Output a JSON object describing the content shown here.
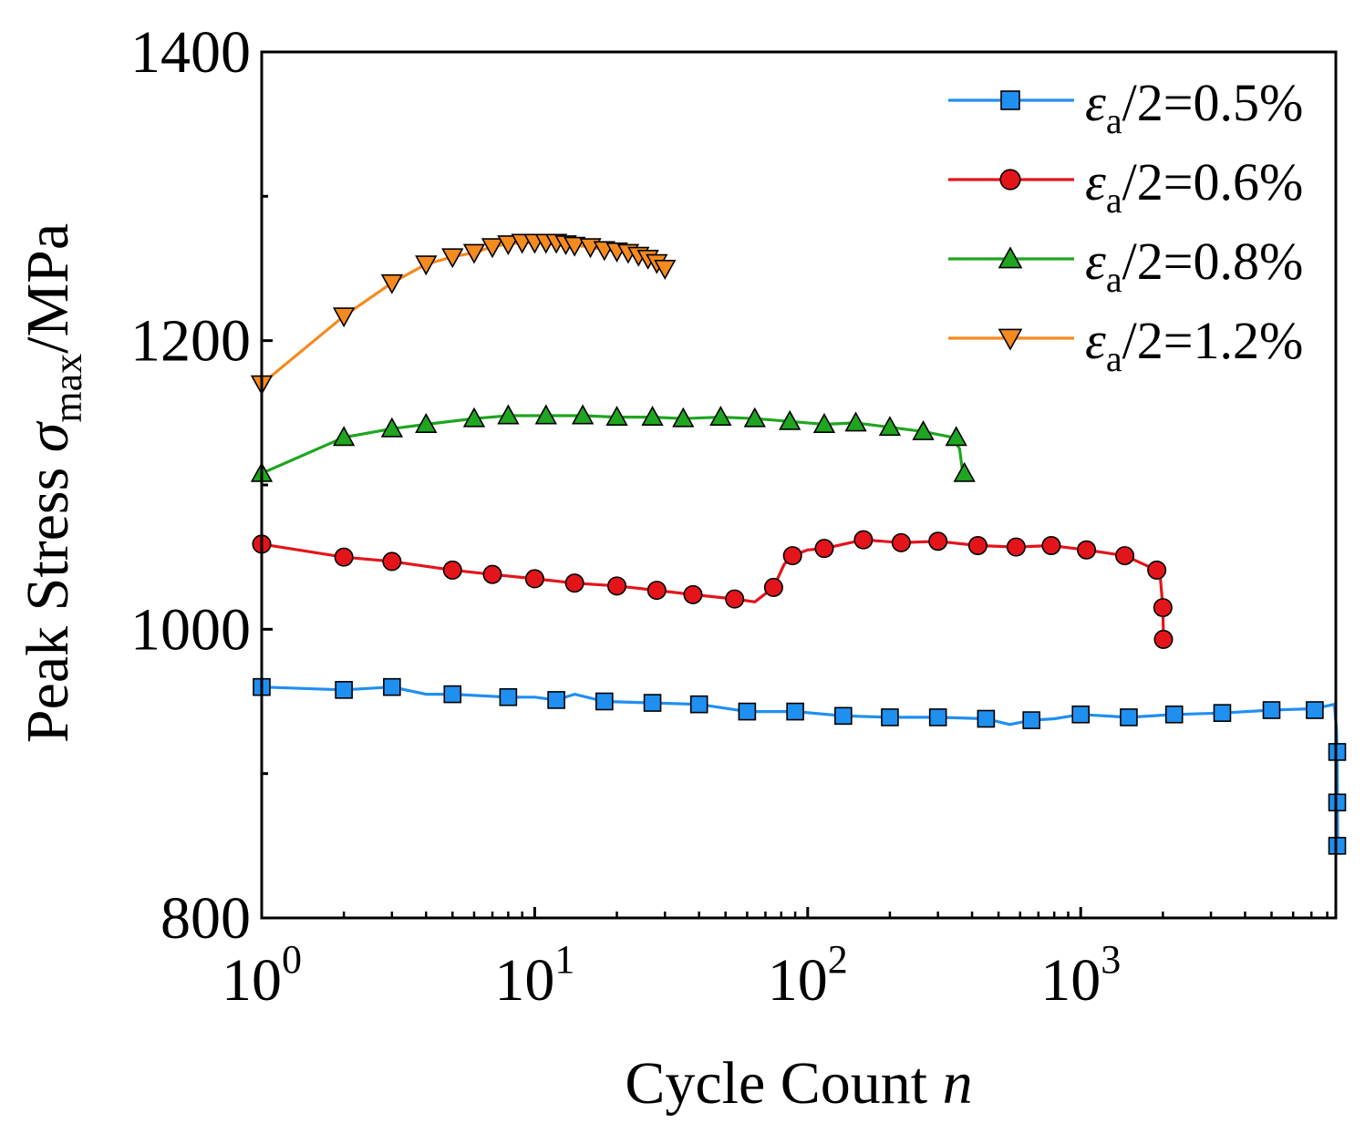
{
  "chart_data": {
    "type": "line",
    "xscale": "log",
    "xlim": [
      1,
      8600
    ],
    "ylim": [
      800,
      1400
    ],
    "xlabel_text": "Cycle Count ",
    "xlabel_var": "n",
    "ylabel_prefix": "Peak Stress ",
    "ylabel_symbol": "σ",
    "ylabel_sub": "max",
    "ylabel_suffix": "/MPa",
    "yticks": [
      800,
      1000,
      1200,
      1400
    ],
    "yticks_minor": [
      900,
      1100,
      1300
    ],
    "xticks": [
      {
        "value": 1,
        "base": "10",
        "exp": "0"
      },
      {
        "value": 10,
        "base": "10",
        "exp": "1"
      },
      {
        "value": 100,
        "base": "10",
        "exp": "2"
      },
      {
        "value": 1000,
        "base": "10",
        "exp": "3"
      }
    ],
    "legend_position": "top-right",
    "series": [
      {
        "name": "εa/2=0.5%",
        "label_symbol": "ε",
        "label_sub": "a",
        "label_rest": "/2=0.5%",
        "color": "#1f8ff0",
        "marker": "square",
        "line": [
          [
            1,
            960
          ],
          [
            2,
            958
          ],
          [
            3,
            960
          ],
          [
            4,
            955
          ],
          [
            5,
            955
          ],
          [
            8,
            953
          ],
          [
            10,
            953
          ],
          [
            12,
            951
          ],
          [
            14,
            955
          ],
          [
            18,
            950
          ],
          [
            27,
            949
          ],
          [
            40,
            948
          ],
          [
            60,
            943
          ],
          [
            90,
            943
          ],
          [
            135,
            940
          ],
          [
            200,
            939
          ],
          [
            300,
            939
          ],
          [
            450,
            938
          ],
          [
            550,
            934
          ],
          [
            660,
            937
          ],
          [
            800,
            938
          ],
          [
            1000,
            941
          ],
          [
            1500,
            939
          ],
          [
            2200,
            941
          ],
          [
            3300,
            942
          ],
          [
            5000,
            944
          ],
          [
            7200,
            945
          ],
          [
            8000,
            947
          ],
          [
            8500,
            948
          ],
          [
            8650,
            930
          ],
          [
            8700,
            910
          ],
          [
            8720,
            880
          ],
          [
            8730,
            850
          ]
        ],
        "points": [
          [
            1,
            960
          ],
          [
            2,
            958
          ],
          [
            3,
            960
          ],
          [
            5,
            955
          ],
          [
            8,
            953
          ],
          [
            12,
            951
          ],
          [
            18,
            950
          ],
          [
            27,
            949
          ],
          [
            40,
            948
          ],
          [
            60,
            943
          ],
          [
            90,
            943
          ],
          [
            135,
            940
          ],
          [
            200,
            939
          ],
          [
            300,
            939
          ],
          [
            450,
            938
          ],
          [
            660,
            937
          ],
          [
            1000,
            941
          ],
          [
            1500,
            939
          ],
          [
            2200,
            941
          ],
          [
            3300,
            942
          ],
          [
            5000,
            944
          ],
          [
            7200,
            944
          ],
          [
            8700,
            915
          ],
          [
            8700,
            880
          ],
          [
            8700,
            850
          ]
        ]
      },
      {
        "name": "εa/2=0.6%",
        "label_symbol": "ε",
        "label_sub": "a",
        "label_rest": "/2=0.6%",
        "color": "#e4141b",
        "marker": "circle",
        "line": [
          [
            1,
            1059
          ],
          [
            2,
            1050
          ],
          [
            3,
            1047
          ],
          [
            5,
            1041
          ],
          [
            7,
            1038
          ],
          [
            10,
            1035
          ],
          [
            14,
            1032
          ],
          [
            20,
            1030
          ],
          [
            28,
            1027
          ],
          [
            38,
            1024
          ],
          [
            54,
            1021
          ],
          [
            64,
            1019
          ],
          [
            75,
            1029
          ],
          [
            82,
            1045
          ],
          [
            88,
            1051
          ],
          [
            100,
            1055
          ],
          [
            115,
            1056
          ],
          [
            160,
            1062
          ],
          [
            220,
            1060
          ],
          [
            300,
            1061
          ],
          [
            420,
            1058
          ],
          [
            580,
            1057
          ],
          [
            780,
            1058
          ],
          [
            1050,
            1055
          ],
          [
            1450,
            1051
          ],
          [
            1800,
            1043
          ],
          [
            1950,
            1040
          ],
          [
            2000,
            1015
          ],
          [
            2010,
            993
          ]
        ],
        "points": [
          [
            1,
            1059
          ],
          [
            2,
            1050
          ],
          [
            3,
            1047
          ],
          [
            5,
            1041
          ],
          [
            7,
            1038
          ],
          [
            10,
            1035
          ],
          [
            14,
            1032
          ],
          [
            20,
            1030
          ],
          [
            28,
            1027
          ],
          [
            38,
            1024
          ],
          [
            54,
            1021
          ],
          [
            75,
            1029
          ],
          [
            88,
            1051
          ],
          [
            115,
            1056
          ],
          [
            160,
            1062
          ],
          [
            220,
            1060
          ],
          [
            300,
            1061
          ],
          [
            420,
            1058
          ],
          [
            580,
            1057
          ],
          [
            780,
            1058
          ],
          [
            1050,
            1055
          ],
          [
            1450,
            1051
          ],
          [
            1900,
            1041
          ],
          [
            2000,
            1015
          ],
          [
            2010,
            993
          ]
        ]
      },
      {
        "name": "εa/2=0.8%",
        "label_symbol": "ε",
        "label_sub": "a",
        "label_rest": "/2=0.8%",
        "color": "#1fa51f",
        "marker": "triangle-up",
        "line": [
          [
            1,
            1108
          ],
          [
            2,
            1133
          ],
          [
            3,
            1139
          ],
          [
            4,
            1142
          ],
          [
            6,
            1146
          ],
          [
            8,
            1148
          ],
          [
            11,
            1148
          ],
          [
            15,
            1148
          ],
          [
            20,
            1147
          ],
          [
            27,
            1147
          ],
          [
            35,
            1146
          ],
          [
            48,
            1147
          ],
          [
            64,
            1146
          ],
          [
            86,
            1144
          ],
          [
            115,
            1142
          ],
          [
            150,
            1143
          ],
          [
            200,
            1140
          ],
          [
            265,
            1137
          ],
          [
            340,
            1133
          ],
          [
            360,
            1125
          ],
          [
            370,
            1108
          ]
        ],
        "points": [
          [
            1,
            1108
          ],
          [
            2,
            1133
          ],
          [
            3,
            1139
          ],
          [
            4,
            1142
          ],
          [
            6,
            1146
          ],
          [
            8,
            1148
          ],
          [
            11,
            1148
          ],
          [
            15,
            1148
          ],
          [
            20,
            1147
          ],
          [
            27,
            1147
          ],
          [
            35,
            1146
          ],
          [
            48,
            1147
          ],
          [
            64,
            1146
          ],
          [
            86,
            1144
          ],
          [
            115,
            1142
          ],
          [
            150,
            1143
          ],
          [
            200,
            1140
          ],
          [
            265,
            1137
          ],
          [
            350,
            1133
          ],
          [
            375,
            1108
          ]
        ]
      },
      {
        "name": "εa/2=1.2%",
        "label_symbol": "ε",
        "label_sub": "a",
        "label_rest": "/2=1.2%",
        "color": "#f58a1f",
        "marker": "triangle-down",
        "line": [
          [
            1,
            1170
          ],
          [
            2,
            1217
          ],
          [
            3,
            1240
          ],
          [
            4,
            1253
          ],
          [
            5,
            1258
          ],
          [
            6,
            1261
          ],
          [
            7,
            1265
          ],
          [
            8,
            1267
          ],
          [
            9,
            1268
          ],
          [
            10,
            1268
          ],
          [
            11,
            1268
          ],
          [
            12,
            1268
          ],
          [
            13,
            1267
          ],
          [
            14,
            1266
          ],
          [
            16,
            1265
          ],
          [
            18,
            1263
          ],
          [
            20,
            1262
          ],
          [
            22,
            1261
          ],
          [
            24,
            1259
          ],
          [
            26,
            1257
          ],
          [
            28,
            1254
          ],
          [
            30,
            1250
          ]
        ],
        "points": [
          [
            1,
            1170
          ],
          [
            2,
            1217
          ],
          [
            3,
            1240
          ],
          [
            4,
            1253
          ],
          [
            5,
            1258
          ],
          [
            6,
            1261
          ],
          [
            7,
            1265
          ],
          [
            8,
            1267
          ],
          [
            9,
            1268
          ],
          [
            10,
            1268
          ],
          [
            11,
            1268
          ],
          [
            12,
            1268
          ],
          [
            13,
            1267
          ],
          [
            14,
            1266
          ],
          [
            16,
            1265
          ],
          [
            18,
            1263
          ],
          [
            20,
            1262
          ],
          [
            22,
            1261
          ],
          [
            24,
            1259
          ],
          [
            26,
            1257
          ],
          [
            28,
            1254
          ],
          [
            30,
            1250
          ]
        ]
      }
    ]
  }
}
